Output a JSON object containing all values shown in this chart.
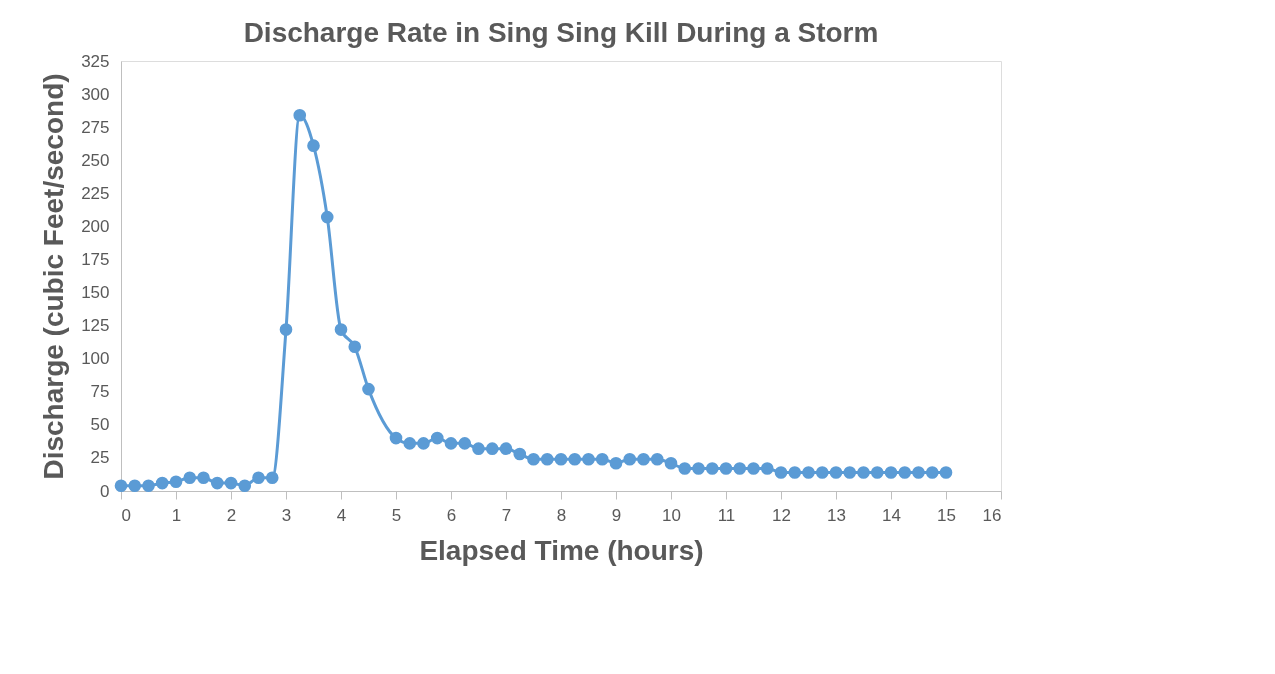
{
  "chart_data": {
    "type": "line",
    "title": "Discharge Rate in Sing Sing Kill During a Storm",
    "xlabel": "Elapsed Time (hours)",
    "ylabel": "Discharge (cubic Feet/second)",
    "x": [
      0,
      0.25,
      0.5,
      0.75,
      1,
      1.25,
      1.5,
      1.75,
      2,
      2.25,
      2.5,
      2.75,
      3,
      3.25,
      3.5,
      3.75,
      4,
      4.25,
      4.5,
      5,
      5.25,
      5.5,
      5.75,
      6,
      6.25,
      6.5,
      6.75,
      7,
      7.25,
      7.5,
      7.75,
      8,
      8.25,
      8.5,
      8.75,
      9,
      9.25,
      9.5,
      9.75,
      10,
      10.25,
      10.5,
      10.75,
      11,
      11.25,
      11.5,
      11.75,
      12,
      12.25,
      12.5,
      12.75,
      13,
      13.25,
      13.5,
      13.75,
      14,
      14.25,
      14.5,
      14.75,
      15
    ],
    "series": [
      {
        "color": "#5b9bd5",
        "values": [
          4,
          4,
          4,
          6,
          7,
          10,
          10,
          6,
          6,
          4,
          10,
          10,
          122,
          284,
          261,
          207,
          122,
          109,
          77,
          40,
          36,
          36,
          40,
          36,
          36,
          32,
          32,
          32,
          28,
          24,
          24,
          24,
          24,
          24,
          24,
          21,
          24,
          24,
          24,
          21,
          17,
          17,
          17,
          17,
          17,
          17,
          17,
          14,
          14,
          14,
          14,
          14,
          14,
          14,
          14,
          14,
          14,
          14,
          14,
          14
        ]
      }
    ],
    "xlim": [
      0,
      16
    ],
    "xticks": [
      0,
      1,
      2,
      3,
      4,
      5,
      6,
      7,
      8,
      9,
      10,
      11,
      12,
      13,
      14,
      15,
      16
    ],
    "ylim": [
      0,
      325
    ],
    "yticks": [
      0,
      25,
      50,
      75,
      100,
      125,
      150,
      175,
      200,
      225,
      250,
      275,
      300,
      325
    ],
    "grid": false,
    "marker": "circle",
    "line_style": "solid"
  }
}
